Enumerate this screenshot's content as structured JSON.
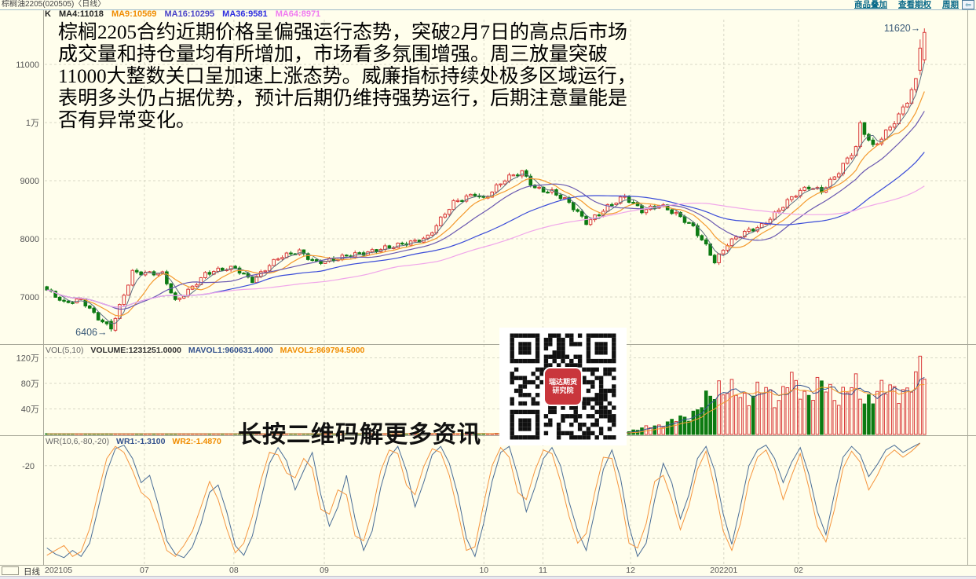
{
  "header": {
    "title": "棕榈油2205(020505)〈日线〉",
    "links": [
      {
        "label": "商品叠加"
      },
      {
        "label": "查看期权"
      },
      {
        "label": "周期"
      }
    ],
    "corner_icon_glyph": "⇦"
  },
  "main": {
    "legend": {
      "k": "K",
      "ma4": "MA4:11018",
      "ma9": "MA9:10569",
      "ma16": "MA16:10295",
      "ma36": "MA36:9581",
      "ma64": "MA64:8971"
    }
  },
  "annotation": {
    "lines": [
      "棕榈2205合约近期价格呈偏强运行态势，突破2月7日的高点后市场",
      "成交量和持仓量均有所增加，市场看多氛围增强。周三放量突破",
      "11000大整数关口呈加速上涨态势。威廉指标持续处极多区域运行，",
      "表明多头仍占据优势，预计后期仍维持强势运行，后期注意量能是",
      "否有异常变化。"
    ]
  },
  "vol_header": {
    "name": "VOL(5,10)",
    "volume": "VOLUME:1231251.0000",
    "mavol1": "MAVOL1:960631.4000",
    "mavol2": "MAVOL2:869794.5000"
  },
  "wr_header": {
    "name": "WR(10,6,-80,-20)",
    "wr1": "WR1:-1.3100",
    "wr2": "WR2:-1.4870"
  },
  "qr": {
    "caption": "长按二维码解更多资讯",
    "logo_line1": "瑞达期货",
    "logo_line2": "研究院"
  },
  "bottom": {
    "period_label": "日线"
  },
  "colors": {
    "background": "#fffeec",
    "up": "#d93a3a",
    "down": "#0c7a12",
    "ma4": "#5c6e80",
    "ma9": "#f49a2e",
    "ma16": "#6a58b0",
    "ma36": "#3a4bd8",
    "ma64": "#f0a6ea",
    "mavol1": "#33518d",
    "mavol2": "#f49a2e",
    "wr1": "#4a6d96",
    "wr2": "#f5953e",
    "link": "#0a6a8a",
    "grid": "#d8d8c6",
    "annotation_label": "#3a5a78"
  },
  "chart_data": [
    {
      "type": "candlestick",
      "name": "price",
      "title": "棕榈油2205(020505) 日线",
      "grid": true,
      "ylim": [
        6300,
        11750
      ],
      "n": 206,
      "yticks": [
        {
          "label": "11000",
          "value": 11000
        },
        {
          "label": "1万",
          "value": 10000
        },
        {
          "label": "9000",
          "value": 9000
        },
        {
          "label": "8000",
          "value": 8000
        },
        {
          "label": "7000",
          "value": 7000
        }
      ],
      "xticks": [
        {
          "label": "202105",
          "f": 0.0,
          "align": "start"
        },
        {
          "label": "07",
          "f": 0.108
        },
        {
          "label": "08",
          "f": 0.205
        },
        {
          "label": "09",
          "f": 0.303
        },
        {
          "label": "10",
          "f": 0.476
        },
        {
          "label": "11",
          "f": 0.54
        },
        {
          "label": "12",
          "f": 0.635
        },
        {
          "label": "202201",
          "f": 0.736
        },
        {
          "label": "02",
          "f": 0.817
        }
      ],
      "ma_periods": [
        4,
        9,
        16,
        36,
        64
      ],
      "ma_latest": {
        "MA4": 11018,
        "MA9": 10569,
        "MA16": 10295,
        "MA36": 9581,
        "MA64": 8971
      },
      "close_anchors": [
        [
          0,
          7100
        ],
        [
          4,
          6900
        ],
        [
          8,
          6980
        ],
        [
          12,
          6620
        ],
        [
          15,
          6430
        ],
        [
          20,
          7450
        ],
        [
          27,
          7380
        ],
        [
          30,
          6920
        ],
        [
          37,
          7400
        ],
        [
          44,
          7500
        ],
        [
          48,
          7300
        ],
        [
          54,
          7650
        ],
        [
          59,
          7800
        ],
        [
          63,
          7600
        ],
        [
          67,
          7620
        ],
        [
          72,
          7750
        ],
        [
          76,
          7800
        ],
        [
          81,
          7850
        ],
        [
          89,
          8050
        ],
        [
          95,
          8600
        ],
        [
          100,
          8800
        ],
        [
          102,
          8700
        ],
        [
          107,
          9000
        ],
        [
          111,
          9150
        ],
        [
          114,
          8900
        ],
        [
          118,
          8800
        ],
        [
          122,
          8600
        ],
        [
          126,
          8300
        ],
        [
          131,
          8550
        ],
        [
          135,
          8700
        ],
        [
          139,
          8500
        ],
        [
          143,
          8600
        ],
        [
          146,
          8450
        ],
        [
          151,
          8200
        ],
        [
          154,
          7900
        ],
        [
          156,
          7620
        ],
        [
          159,
          7900
        ],
        [
          163,
          8100
        ],
        [
          167,
          8250
        ],
        [
          171,
          8500
        ],
        [
          175,
          8750
        ],
        [
          178,
          8900
        ],
        [
          181,
          8850
        ],
        [
          185,
          9150
        ],
        [
          189,
          9550
        ],
        [
          190,
          9950
        ],
        [
          193,
          9600
        ],
        [
          196,
          9850
        ],
        [
          199,
          10100
        ],
        [
          201,
          10350
        ],
        [
          203,
          10700
        ],
        [
          204,
          11050
        ],
        [
          205,
          11550
        ]
      ],
      "annotations": [
        {
          "text": "11620→",
          "idx": 205,
          "price": 11620,
          "dy": 4
        },
        {
          "text": "6406→",
          "idx": 15,
          "price": 6406,
          "dy": 5
        }
      ],
      "high": 11620,
      "low": 6406
    },
    {
      "type": "bar",
      "name": "volume",
      "params": "VOL(5,10)",
      "latest": {
        "VOLUME": 1231251.0,
        "MAVOL1": 960631.4,
        "MAVOL2": 869794.5
      },
      "unit": "万",
      "ylim_wan": [
        0,
        130
      ],
      "yticks": [
        {
          "label": "120万",
          "value": 120
        },
        {
          "label": "80万",
          "value": 80
        },
        {
          "label": "40万",
          "value": 40
        }
      ],
      "bar_style": "red-hollow-up-green-solid-down",
      "vol_anchors": [
        [
          0,
          0.8
        ],
        [
          60,
          1.0
        ],
        [
          100,
          1.3
        ],
        [
          125,
          1.6
        ],
        [
          133,
          2
        ],
        [
          136,
          5
        ],
        [
          138,
          8
        ],
        [
          141,
          12
        ],
        [
          144,
          16
        ],
        [
          147,
          22
        ],
        [
          150,
          30
        ],
        [
          152,
          38
        ],
        [
          153,
          45
        ],
        [
          155,
          60
        ],
        [
          157,
          78
        ],
        [
          159,
          70
        ],
        [
          161,
          62
        ],
        [
          163,
          58
        ],
        [
          165,
          66
        ],
        [
          167,
          70
        ],
        [
          169,
          60
        ],
        [
          171,
          56
        ],
        [
          173,
          87
        ],
        [
          175,
          72
        ],
        [
          177,
          64
        ],
        [
          179,
          70
        ],
        [
          181,
          76
        ],
        [
          183,
          66
        ],
        [
          185,
          60
        ],
        [
          187,
          68
        ],
        [
          189,
          74
        ],
        [
          191,
          56
        ],
        [
          193,
          60
        ],
        [
          195,
          66
        ],
        [
          197,
          76
        ],
        [
          199,
          70
        ],
        [
          201,
          62
        ],
        [
          202,
          72
        ],
        [
          203,
          82
        ],
        [
          204,
          120
        ],
        [
          205,
          124
        ]
      ]
    },
    {
      "type": "line",
      "name": "WR",
      "params": "WR(10,6,-80,-20)",
      "latest": {
        "WR1": -1.31,
        "WR2": -1.487
      },
      "ylim": [
        -100,
        0
      ],
      "yticks": [
        {
          "label": "-20",
          "value": -20
        }
      ],
      "gridline_values": [
        -20,
        -80
      ],
      "sample_step": 2,
      "series": [
        {
          "name": "WR1",
          "color": "#4a6d96",
          "values": [
            -88,
            -93,
            -96,
            -90,
            -95,
            -84,
            -55,
            -25,
            -6,
            -3,
            -14,
            -34,
            -28,
            -52,
            -82,
            -93,
            -96,
            -87,
            -68,
            -42,
            -36,
            -58,
            -86,
            -94,
            -78,
            -48,
            -18,
            -5,
            -16,
            -40,
            -24,
            -9,
            -44,
            -70,
            -54,
            -28,
            -64,
            -90,
            -74,
            -38,
            -13,
            -4,
            -24,
            -54,
            -34,
            -11,
            -4,
            -18,
            -44,
            -80,
            -95,
            -68,
            -33,
            -9,
            -4,
            -28,
            -58,
            -38,
            -14,
            -5,
            -20,
            -50,
            -74,
            -90,
            -58,
            -23,
            -7,
            -30,
            -70,
            -95,
            -84,
            -48,
            -18,
            -34,
            -64,
            -44,
            -14,
            -4,
            -24,
            -60,
            -85,
            -54,
            -20,
            -7,
            -3,
            -14,
            -34,
            -17,
            -5,
            -27,
            -58,
            -77,
            -43,
            -13,
            -4,
            -11,
            -29,
            -19,
            -7,
            -3,
            -9,
            -5,
            -1.3
          ]
        },
        {
          "name": "WR2",
          "color": "#f5953e",
          "values": [
            -94,
            -90,
            -86,
            -95,
            -91,
            -72,
            -42,
            -14,
            -4,
            -9,
            -24,
            -42,
            -48,
            -68,
            -90,
            -95,
            -86,
            -74,
            -54,
            -33,
            -48,
            -72,
            -92,
            -84,
            -62,
            -32,
            -9,
            -11,
            -26,
            -30,
            -14,
            -22,
            -56,
            -60,
            -40,
            -44,
            -78,
            -82,
            -58,
            -24,
            -7,
            -10,
            -36,
            -44,
            -21,
            -6,
            -9,
            -28,
            -58,
            -90,
            -87,
            -52,
            -20,
            -5,
            -13,
            -42,
            -48,
            -24,
            -7,
            -10,
            -33,
            -62,
            -84,
            -76,
            -42,
            -13,
            -14,
            -44,
            -84,
            -88,
            -68,
            -33,
            -28,
            -48,
            -73,
            -53,
            -23,
            -8,
            -38,
            -74,
            -90,
            -68,
            -33,
            -13,
            -7,
            -23,
            -48,
            -28,
            -10,
            -38,
            -70,
            -83,
            -56,
            -22,
            -8,
            -17,
            -40,
            -28,
            -13,
            -7,
            -13,
            -8,
            -1.5
          ]
        }
      ]
    }
  ]
}
